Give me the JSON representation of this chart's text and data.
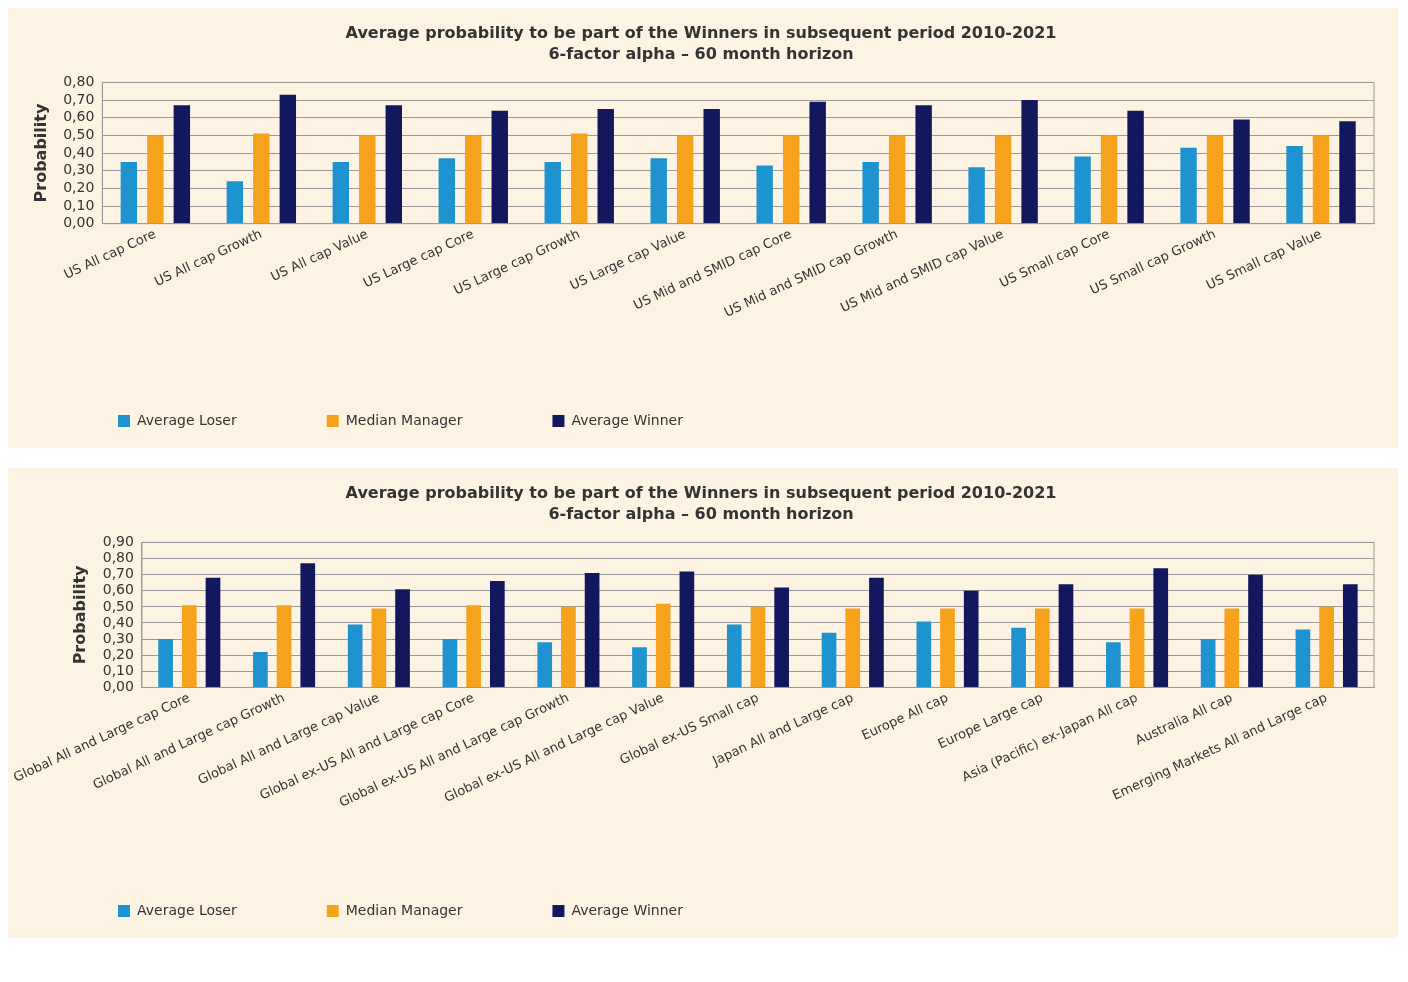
{
  "chart_data": [
    {
      "type": "bar",
      "title": "Average probability to be part of the Winners in subsequent period 2010-2021",
      "subtitle": "6-factor alpha – 60 month horizon",
      "ylabel": "Probability",
      "categories": [
        "US All cap Core",
        "US All cap Growth",
        "US All cap Value",
        "US Large cap Core",
        "US Large cap Growth",
        "US Large cap Value",
        "US Mid and SMID cap Core",
        "US Mid and SMID cap Growth",
        "US Mid and SMID cap Value",
        "US Small cap Core",
        "US Small cap Growth",
        "US Small cap Value"
      ],
      "series": [
        {
          "name": "Average Loser",
          "color": "#1e93d0",
          "values": [
            0.35,
            0.24,
            0.35,
            0.37,
            0.35,
            0.37,
            0.33,
            0.35,
            0.32,
            0.38,
            0.43,
            0.44
          ]
        },
        {
          "name": "Median Manager",
          "color": "#f7a21c",
          "values": [
            0.5,
            0.51,
            0.5,
            0.5,
            0.51,
            0.5,
            0.5,
            0.5,
            0.5,
            0.5,
            0.5,
            0.5
          ]
        },
        {
          "name": "Average Winner",
          "color": "#12175e",
          "values": [
            0.67,
            0.73,
            0.67,
            0.64,
            0.65,
            0.65,
            0.69,
            0.67,
            0.7,
            0.64,
            0.59,
            0.58
          ]
        }
      ],
      "ylim": [
        0,
        0.8
      ],
      "yticks": [
        {
          "value": 0,
          "label": "0,00"
        },
        {
          "value": 0.1,
          "label": "0,10"
        },
        {
          "value": 0.2,
          "label": "0,20"
        },
        {
          "value": 0.3,
          "label": "0,30"
        },
        {
          "value": 0.4,
          "label": "0,40"
        },
        {
          "value": 0.5,
          "label": "0,50"
        },
        {
          "value": 0.6,
          "label": "0,60"
        },
        {
          "value": 0.7,
          "label": "0,70"
        },
        {
          "value": 0.8,
          "label": "0,80"
        }
      ],
      "grid": "y",
      "legend": "bottom left"
    },
    {
      "type": "bar",
      "title": "Average probability to be part of the Winners in subsequent period 2010-2021",
      "subtitle": "6-factor alpha – 60 month horizon",
      "ylabel": "Probability",
      "categories": [
        "Global All and Large cap Core",
        "Global All and Large cap Growth",
        "Global All and Large cap Value",
        "Global ex-US All and Large cap Core",
        "Global ex-US All and Large cap Growth",
        "Global ex-US All and Large cap Value",
        "Global ex-US Small cap",
        "Japan All and Large cap",
        "Europe All cap",
        "Europe Large cap",
        "Asia (Pacific) ex-Japan All cap",
        "Australia All cap",
        "Emerging Markets All and Large cap"
      ],
      "series": [
        {
          "name": "Average Loser",
          "color": "#1e93d0",
          "values": [
            0.3,
            0.22,
            0.39,
            0.3,
            0.28,
            0.25,
            0.39,
            0.34,
            0.41,
            0.37,
            0.28,
            0.3,
            0.36
          ]
        },
        {
          "name": "Median Manager",
          "color": "#f7a21c",
          "values": [
            0.51,
            0.51,
            0.49,
            0.51,
            0.5,
            0.52,
            0.5,
            0.49,
            0.49,
            0.49,
            0.49,
            0.49,
            0.5
          ]
        },
        {
          "name": "Average Winner",
          "color": "#12175e",
          "values": [
            0.68,
            0.77,
            0.61,
            0.66,
            0.71,
            0.72,
            0.62,
            0.68,
            0.6,
            0.64,
            0.74,
            0.7,
            0.64
          ]
        }
      ],
      "ylim": [
        0,
        0.9
      ],
      "yticks": [
        {
          "value": 0,
          "label": "0,00"
        },
        {
          "value": 0.1,
          "label": "0,10"
        },
        {
          "value": 0.2,
          "label": "0,20"
        },
        {
          "value": 0.3,
          "label": "0,30"
        },
        {
          "value": 0.4,
          "label": "0,40"
        },
        {
          "value": 0.5,
          "label": "0,50"
        },
        {
          "value": 0.6,
          "label": "0,60"
        },
        {
          "value": 0.7,
          "label": "0,70"
        },
        {
          "value": 0.8,
          "label": "0,80"
        },
        {
          "value": 0.9,
          "label": "0,90"
        }
      ],
      "grid": "y",
      "legend": "bottom left"
    }
  ]
}
